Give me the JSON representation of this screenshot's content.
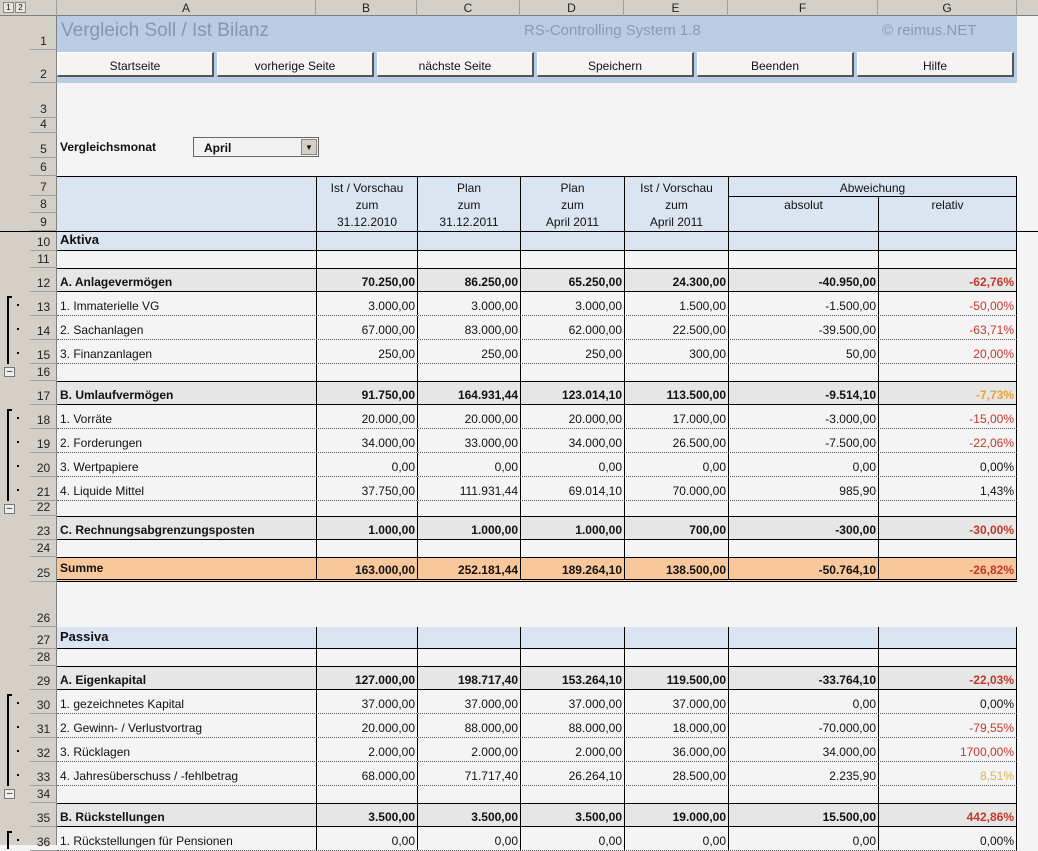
{
  "outline_levels": [
    "1",
    "2"
  ],
  "columns": [
    "A",
    "B",
    "C",
    "D",
    "E",
    "F",
    "G"
  ],
  "header": {
    "title": "Vergleich Soll / Ist Bilanz",
    "system": "RS-Controlling System 1.8",
    "copyright": "© reimus.NET"
  },
  "buttons": [
    "Startseite",
    "vorherige Seite",
    "nächste Seite",
    "Speichern",
    "Beenden",
    "Hilfe"
  ],
  "month": {
    "label": "Vergleichsmonat",
    "value": "April"
  },
  "table_header": {
    "cols": [
      [
        "Ist / Vorschau",
        "zum",
        "31.12.2010"
      ],
      [
        "Plan",
        "zum",
        "31.12.2011"
      ],
      [
        "Plan",
        "zum",
        "April 2011"
      ],
      [
        "Ist / Vorschau",
        "zum",
        "April 2011"
      ]
    ],
    "deviation": "Abweichung",
    "absolute": "absolut",
    "relative": "relativ"
  },
  "top_row_numbers": [
    "1",
    "2",
    "3",
    "4",
    "5",
    "6",
    "7",
    "8",
    "9"
  ],
  "colors": {
    "red": "#c0392b",
    "orange": "#f0a030",
    "yellow": "#d8b450",
    "black": "#111111",
    "summe_bg": "#f9c89a",
    "header_bg": "#dbe5f1",
    "title_band": "#b8cce4"
  },
  "rows": [
    {
      "n": "10",
      "type": "section",
      "label": "Aktiva"
    },
    {
      "n": "11",
      "type": "blank"
    },
    {
      "n": "12",
      "type": "group",
      "label": "A. Anlagevermögen",
      "values": [
        "70.250,00",
        "86.250,00",
        "65.250,00",
        "24.300,00",
        "-40.950,00",
        "-62,76%"
      ],
      "rel": "red"
    },
    {
      "n": "13",
      "type": "detail",
      "label": "1. Immaterielle VG",
      "values": [
        "3.000,00",
        "3.000,00",
        "3.000,00",
        "1.500,00",
        "-1.500,00",
        "-50,00%"
      ],
      "rel": "red"
    },
    {
      "n": "14",
      "type": "detail",
      "label": "2. Sachanlagen",
      "values": [
        "67.000,00",
        "83.000,00",
        "62.000,00",
        "22.500,00",
        "-39.500,00",
        "-63,71%"
      ],
      "rel": "red"
    },
    {
      "n": "15",
      "type": "detail",
      "label": "3. Finanzanlagen",
      "values": [
        "250,00",
        "250,00",
        "250,00",
        "300,00",
        "50,00",
        "20,00%"
      ],
      "rel": "red"
    },
    {
      "n": "16",
      "type": "blank"
    },
    {
      "n": "17",
      "type": "group",
      "label": "B. Umlaufvermögen",
      "values": [
        "91.750,00",
        "164.931,44",
        "123.014,10",
        "113.500,00",
        "-9.514,10",
        "-7,73%"
      ],
      "rel": "orange"
    },
    {
      "n": "18",
      "type": "detail",
      "label": "1. Vorräte",
      "values": [
        "20.000,00",
        "20.000,00",
        "20.000,00",
        "17.000,00",
        "-3.000,00",
        "-15,00%"
      ],
      "rel": "red"
    },
    {
      "n": "19",
      "type": "detail",
      "label": "2. Forderungen",
      "values": [
        "34.000,00",
        "33.000,00",
        "34.000,00",
        "26.500,00",
        "-7.500,00",
        "-22,06%"
      ],
      "rel": "red"
    },
    {
      "n": "20",
      "type": "detail",
      "label": "3. Wertpapiere",
      "values": [
        "0,00",
        "0,00",
        "0,00",
        "0,00",
        "0,00",
        "0,00%"
      ],
      "rel": "black"
    },
    {
      "n": "21",
      "type": "detail",
      "label": "4. Liquide Mittel",
      "values": [
        "37.750,00",
        "111.931,44",
        "69.014,10",
        "70.000,00",
        "985,90",
        "1,43%"
      ],
      "rel": "black"
    },
    {
      "n": "22",
      "type": "blank"
    },
    {
      "n": "23",
      "type": "group",
      "label": "C. Rechnungsabgrenzungsposten",
      "values": [
        "1.000,00",
        "1.000,00",
        "1.000,00",
        "700,00",
        "-300,00",
        "-30,00%"
      ],
      "rel": "red"
    },
    {
      "n": "24",
      "type": "blank"
    },
    {
      "n": "25",
      "type": "sum",
      "label": "Summe",
      "values": [
        "163.000,00",
        "252.181,44",
        "189.264,10",
        "138.500,00",
        "-50.764,10",
        "-26,82%"
      ],
      "rel": "red"
    },
    {
      "n": "26",
      "type": "gap"
    },
    {
      "n": "27",
      "type": "section",
      "label": "Passiva"
    },
    {
      "n": "28",
      "type": "blank"
    },
    {
      "n": "29",
      "type": "group",
      "label": "A. Eigenkapital",
      "values": [
        "127.000,00",
        "198.717,40",
        "153.264,10",
        "119.500,00",
        "-33.764,10",
        "-22,03%"
      ],
      "rel": "red"
    },
    {
      "n": "30",
      "type": "detail",
      "label": "1. gezeichnetes Kapital",
      "values": [
        "37.000,00",
        "37.000,00",
        "37.000,00",
        "37.000,00",
        "0,00",
        "0,00%"
      ],
      "rel": "black"
    },
    {
      "n": "31",
      "type": "detail",
      "label": "2. Gewinn- / Verlustvortrag",
      "values": [
        "20.000,00",
        "88.000,00",
        "88.000,00",
        "18.000,00",
        "-70.000,00",
        "-79,55%"
      ],
      "rel": "red"
    },
    {
      "n": "32",
      "type": "detail",
      "label": "3. Rücklagen",
      "values": [
        "2.000,00",
        "2.000,00",
        "2.000,00",
        "36.000,00",
        "34.000,00",
        "1700,00%"
      ],
      "rel": "red"
    },
    {
      "n": "33",
      "type": "detail",
      "label": "4. Jahresüberschuss / -fehlbetrag",
      "values": [
        "68.000,00",
        "71.717,40",
        "26.264,10",
        "28.500,00",
        "2.235,90",
        "8,51%"
      ],
      "rel": "yellow"
    },
    {
      "n": "34",
      "type": "blank"
    },
    {
      "n": "35",
      "type": "group",
      "label": "B. Rückstellungen",
      "values": [
        "3.500,00",
        "3.500,00",
        "3.500,00",
        "19.000,00",
        "15.500,00",
        "442,86%"
      ],
      "rel": "red"
    },
    {
      "n": "36",
      "type": "detail",
      "label": "1. Rückstellungen für Pensionen",
      "values": [
        "0,00",
        "0,00",
        "0,00",
        "0,00",
        "0,00",
        "0,00%"
      ],
      "rel": "black"
    }
  ]
}
